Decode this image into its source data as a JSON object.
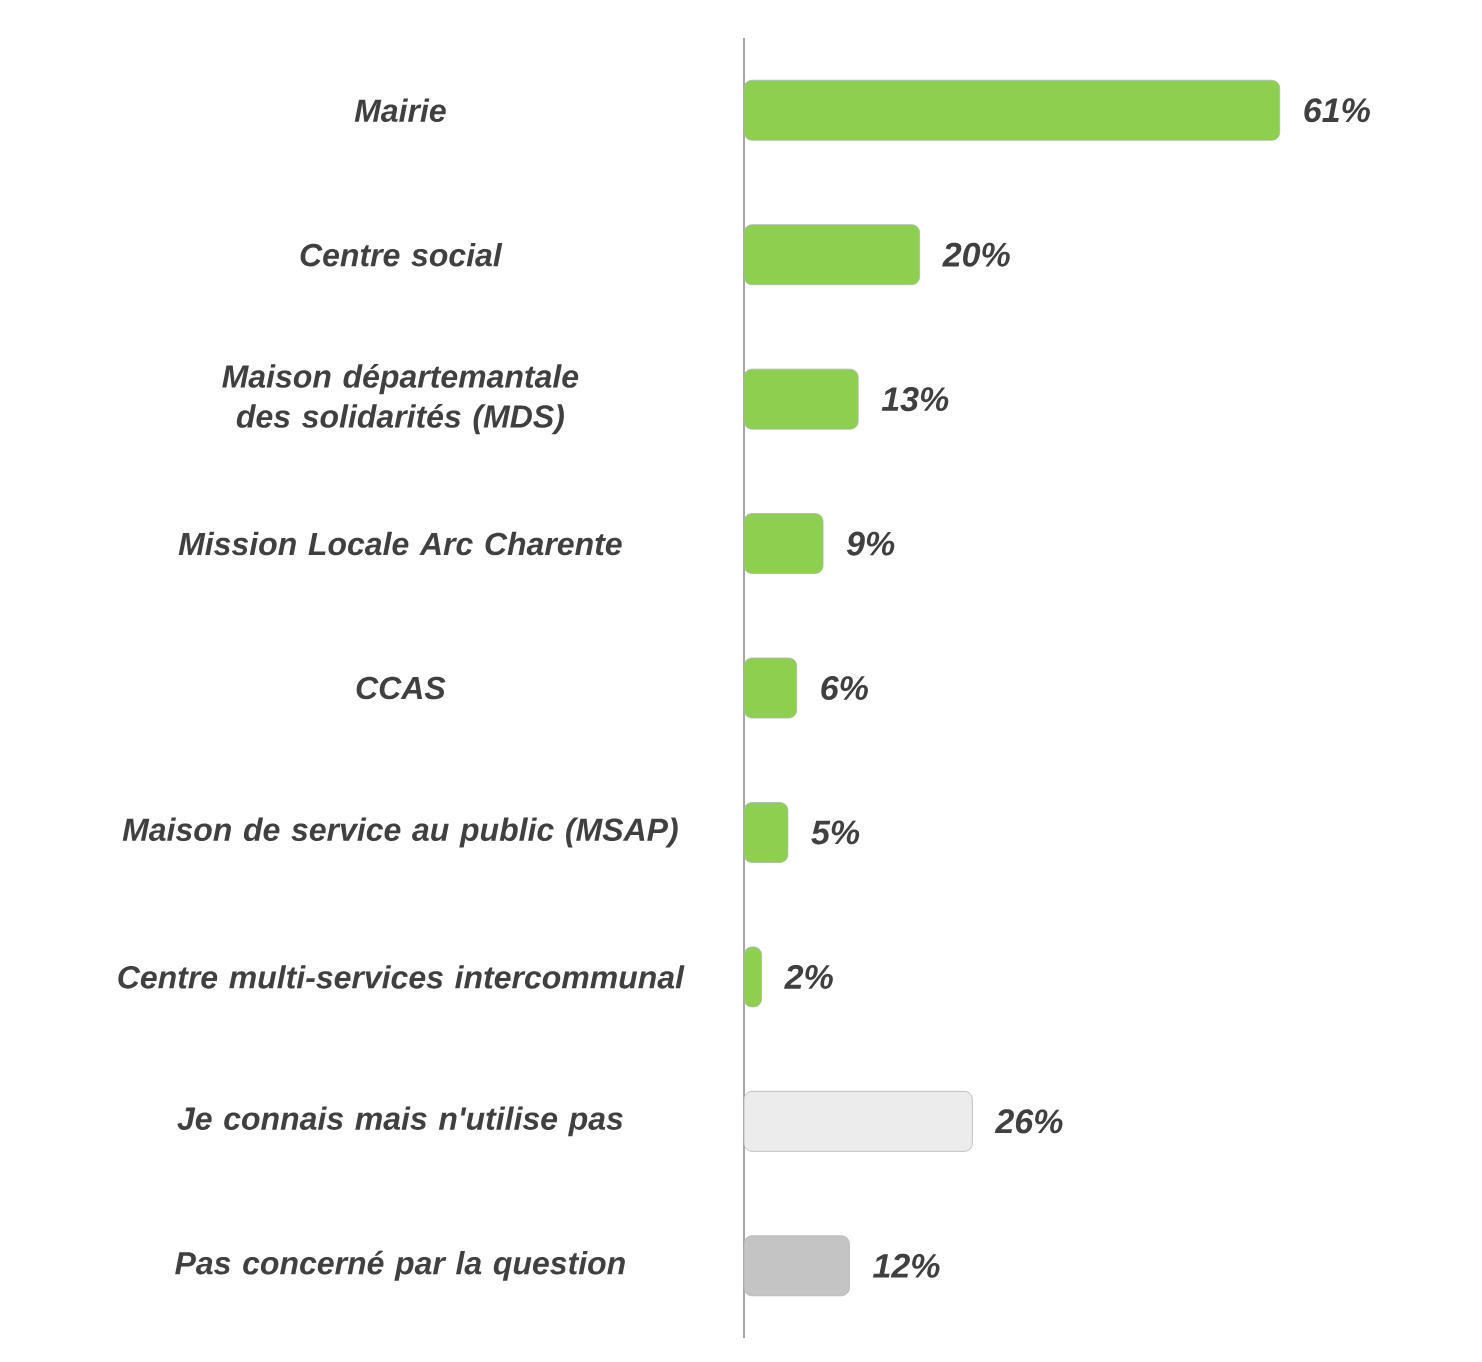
{
  "chart_data": {
    "type": "bar",
    "orientation": "horizontal",
    "categories": [
      "Mairie",
      "Centre social",
      "Maison départemantale des solidarités (MDS)",
      "Mission Locale Arc Charente",
      "CCAS",
      "Maison de service au public (MSAP)",
      "Centre multi-services intercommunal",
      "Je connais mais n'utilise pas",
      "Pas concerné par la question"
    ],
    "values": [
      61,
      20,
      13,
      9,
      6,
      5,
      2,
      26,
      12
    ],
    "value_labels": [
      "61%",
      "20%",
      "13%",
      "9%",
      "6%",
      "5%",
      "2%",
      "26%",
      "12%"
    ],
    "colors": [
      "#8dcf4f",
      "#8dcf4f",
      "#8dcf4f",
      "#8dcf4f",
      "#8dcf4f",
      "#8dcf4f",
      "#8dcf4f",
      "#ececec",
      "#c4c4c4"
    ]
  }
}
